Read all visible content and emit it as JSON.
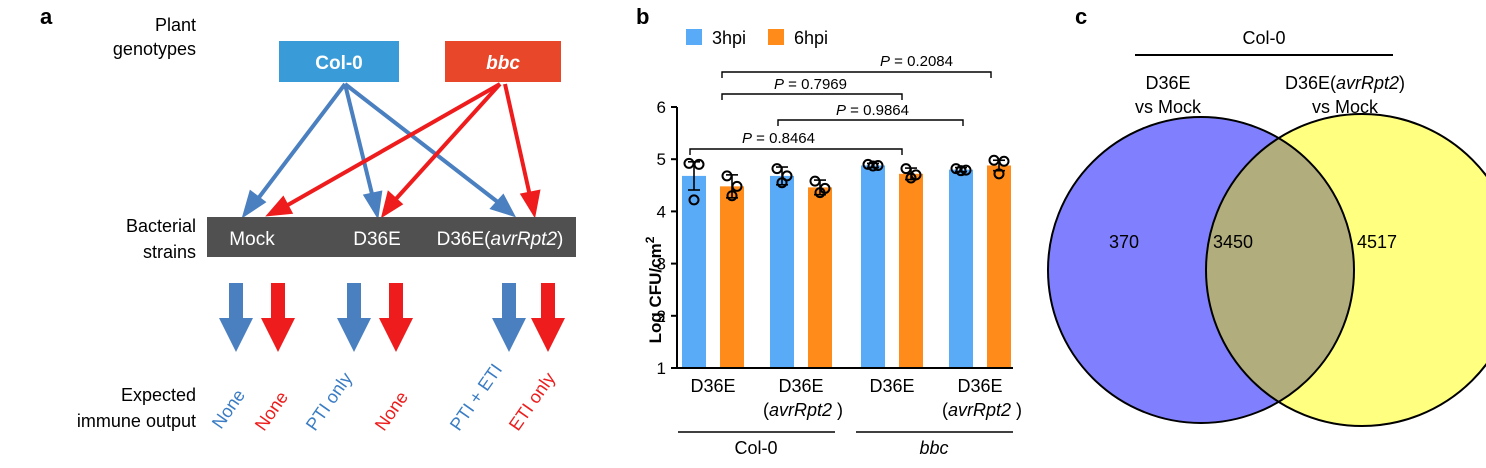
{
  "panel_a": {
    "label": "a",
    "row_plant": [
      "Plant",
      "genotypes"
    ],
    "row_bacteria": [
      "Bacterial",
      "strains"
    ],
    "row_output": [
      "Expected",
      "immune output"
    ],
    "genotypes": [
      {
        "name": "Col-0",
        "color": "#3a9bd9"
      },
      {
        "name": "bbc",
        "color": "#e8472a"
      }
    ],
    "strains": {
      "mock": "Mock",
      "d36e": "D36E",
      "avr_prefix": "D36E(",
      "avr_italic": "avrRpt2",
      "avr_suffix": ")"
    },
    "outputs": [
      {
        "text": "None",
        "color": "#3a7cc4"
      },
      {
        "text": "None",
        "color": "#ee1c1c"
      },
      {
        "text": "PTI only",
        "color": "#3a7cc4"
      },
      {
        "text": "None",
        "color": "#ee1c1c"
      },
      {
        "text": "PTI + ETI",
        "color": "#3a7cc4"
      },
      {
        "text": "ETI only",
        "color": "#ee1c1c"
      }
    ],
    "colors": {
      "blue_arrow": "#4a7fc0",
      "red_arrow": "#ee1c1c",
      "strain_bar": "#505050"
    }
  },
  "panel_b": {
    "label": "b",
    "stats": [
      {
        "text": "P = 0.2084"
      },
      {
        "text": "P = 0.7969"
      },
      {
        "text": "P = 0.9864"
      },
      {
        "text": "P = 0.8464"
      }
    ],
    "group_labels": [
      "Col-0",
      "bbc"
    ]
  },
  "chart_data": {
    "type": "bar",
    "categories": [
      "D36E",
      "D36E (avrRpt2 )",
      "D36E",
      "D36E (avrRpt2 )"
    ],
    "category_lines": [
      {
        "line1": "D36E",
        "line2": "",
        "line2_italic": ""
      },
      {
        "line1": "D36E",
        "line2": "(",
        "line2_italic": "avrRpt2",
        "line2_end": " )"
      },
      {
        "line1": "D36E",
        "line2": "",
        "line2_italic": ""
      },
      {
        "line1": "D36E",
        "line2": "(",
        "line2_italic": "avrRpt2",
        "line2_end": " )"
      }
    ],
    "series": [
      {
        "name": "3hpi",
        "color": "#5aabf7",
        "values": [
          4.68,
          4.68,
          4.88,
          4.8
        ],
        "error": [
          0.27,
          0.17,
          0.04,
          0.04
        ],
        "points": [
          [
            4.92,
            4.9,
            4.22
          ],
          [
            4.82,
            4.68,
            4.55
          ],
          [
            4.9,
            4.88,
            4.87
          ],
          [
            4.82,
            4.79,
            4.78
          ]
        ]
      },
      {
        "name": "6hpi",
        "color": "#ff8c1a",
        "values": [
          4.48,
          4.46,
          4.72,
          4.88
        ],
        "error": [
          0.22,
          0.14,
          0.11,
          0.1
        ],
        "points": [
          [
            4.68,
            4.48,
            4.3
          ],
          [
            4.58,
            4.44,
            4.36
          ],
          [
            4.82,
            4.7,
            4.64
          ],
          [
            4.98,
            4.96,
            4.72
          ]
        ]
      }
    ],
    "ylabel": "Log CFU/cm",
    "ylabel_sup": "2",
    "ylim": [
      1,
      6
    ],
    "yticks": [
      "1",
      "2",
      "3",
      "4",
      "5",
      "6"
    ]
  },
  "panel_c": {
    "label": "c",
    "group": "Col-0",
    "left_title": [
      "D36E",
      "vs Mock"
    ],
    "right_title_prefix": "D36E(",
    "right_title_italic": "avrRpt2",
    "right_title_suffix": ")",
    "right_title_line2": "vs Mock",
    "values": {
      "left_only": "370",
      "overlap": "3450",
      "right_only": "4517"
    },
    "colors": {
      "left": "#8080ff",
      "right": "#ffff80",
      "overlap": "#b2ad7d"
    }
  }
}
